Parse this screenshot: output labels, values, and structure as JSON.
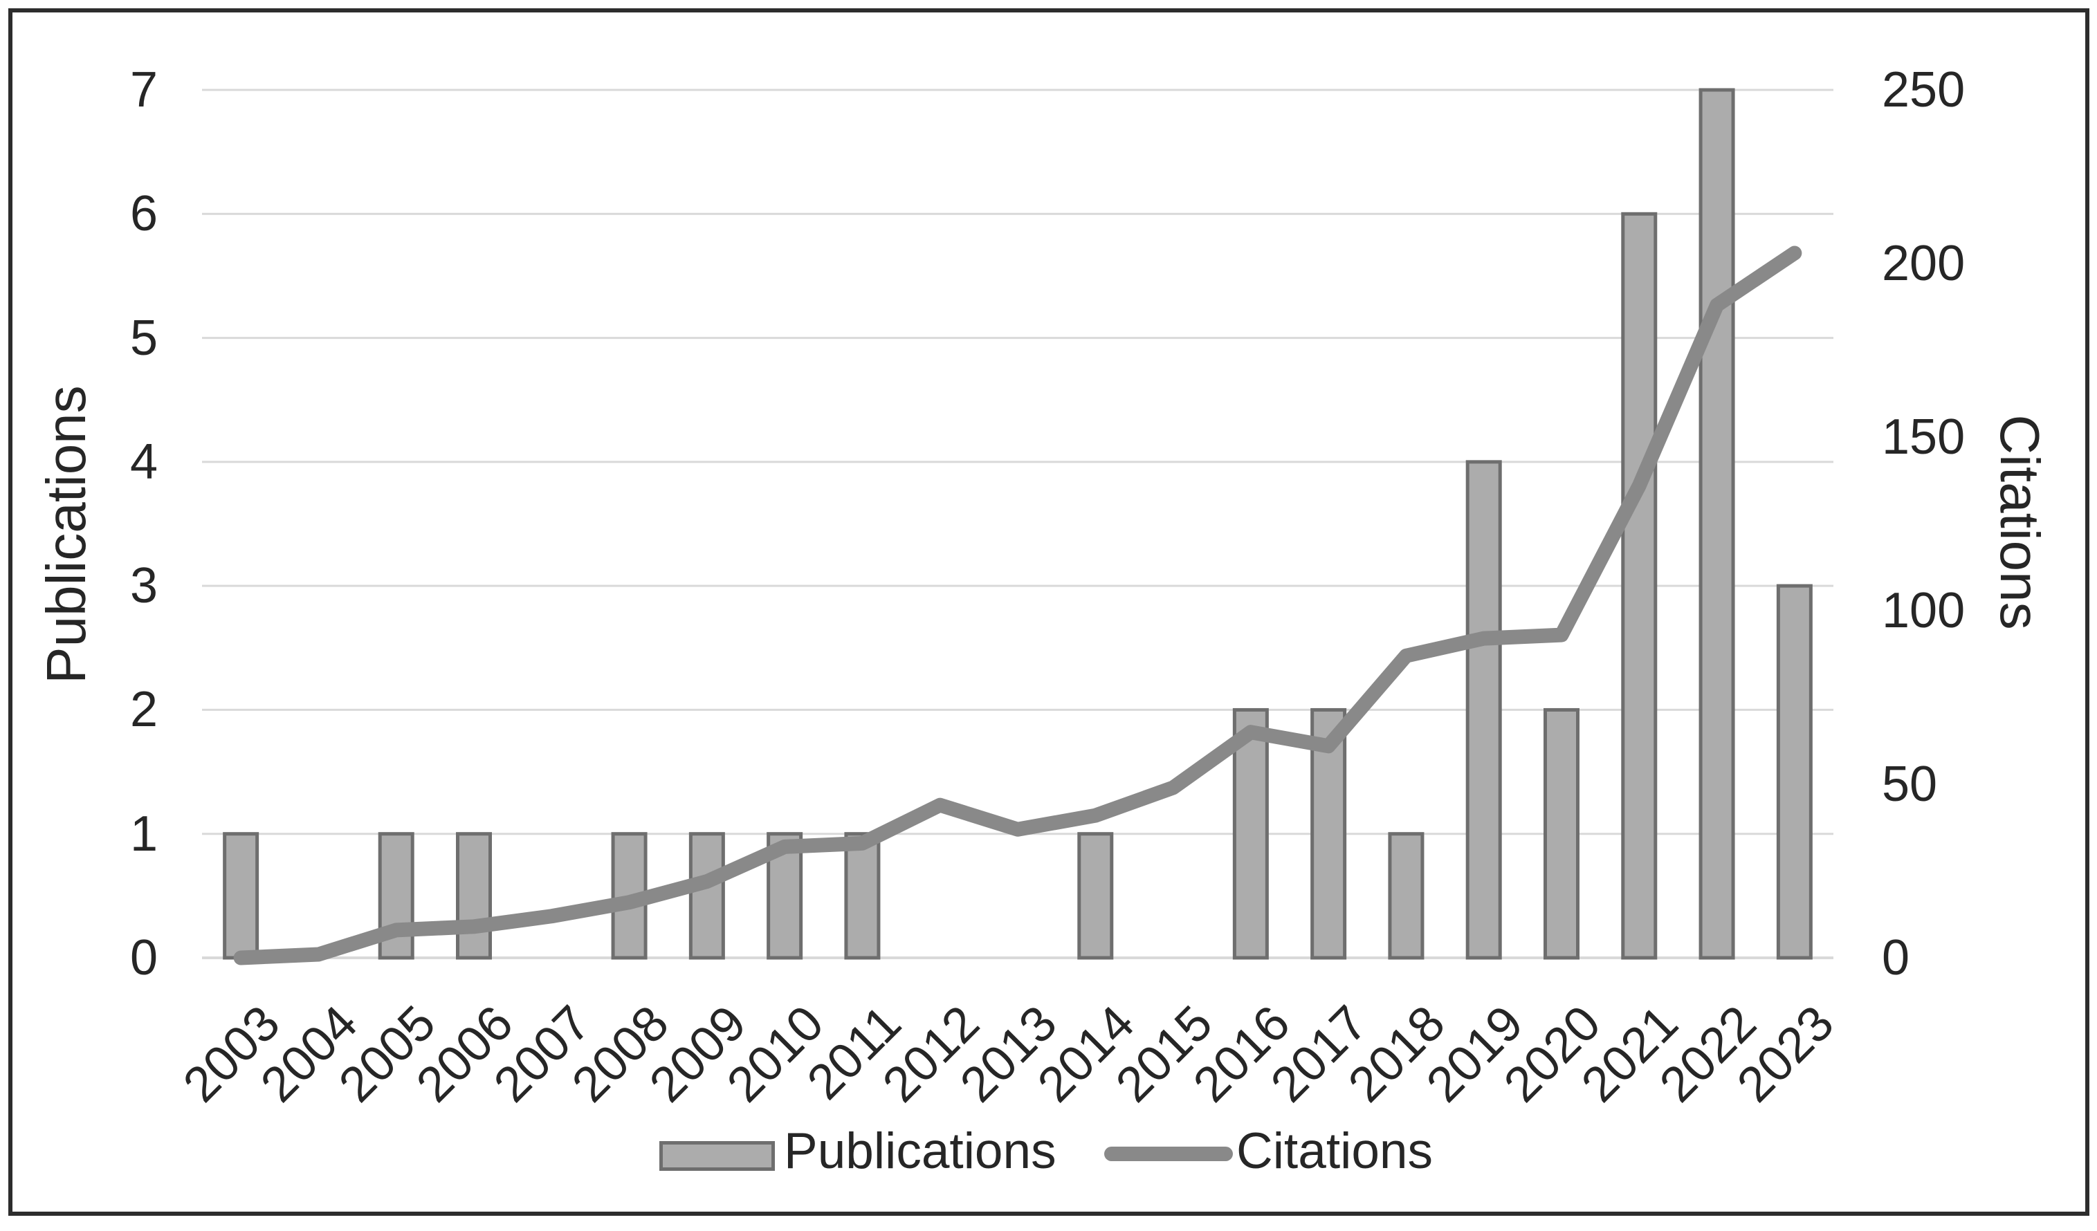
{
  "figure": {
    "kind": "publication-citation trend chart",
    "background": "#ffffff",
    "border_color": "#2d2d2d"
  },
  "chart_data": {
    "type": "combo",
    "categories": [
      "2003",
      "2004",
      "2005",
      "2006",
      "2007",
      "2008",
      "2009",
      "2010",
      "2011",
      "2012",
      "2013",
      "2014",
      "2015",
      "2016",
      "2017",
      "2018",
      "2019",
      "2020",
      "2021",
      "2022",
      "2023"
    ],
    "series": [
      {
        "name": "Publications",
        "type": "bar",
        "axis": "left",
        "values": [
          1,
          0,
          1,
          1,
          0,
          1,
          1,
          1,
          1,
          0,
          0,
          1,
          0,
          2,
          2,
          1,
          4,
          2,
          6,
          7,
          3
        ]
      },
      {
        "name": "Citations",
        "type": "line",
        "axis": "right",
        "values": [
          0,
          1,
          8,
          9,
          12,
          16,
          22,
          32,
          33,
          44,
          37,
          41,
          49,
          65,
          61,
          87,
          92,
          93,
          136,
          188,
          203
        ]
      }
    ],
    "left_axis": {
      "title": "Publications",
      "min": 0,
      "max": 7,
      "tick_step": 1,
      "ticks": [
        0,
        1,
        2,
        3,
        4,
        5,
        6,
        7
      ]
    },
    "right_axis": {
      "title": "Citations",
      "min": 0,
      "max": 250,
      "tick_step": 50,
      "ticks": [
        0,
        50,
        100,
        150,
        200,
        250
      ]
    },
    "x_axis": {
      "label_rotation_deg": -45
    },
    "grid": true,
    "legend": {
      "position": "bottom",
      "items": [
        "Publications",
        "Citations"
      ]
    },
    "colors": {
      "bar_fill": "#acacac",
      "bar_border": "#6e6e6e",
      "line": "#898989",
      "gridline": "#d9d9d9",
      "text": "#262626"
    }
  }
}
